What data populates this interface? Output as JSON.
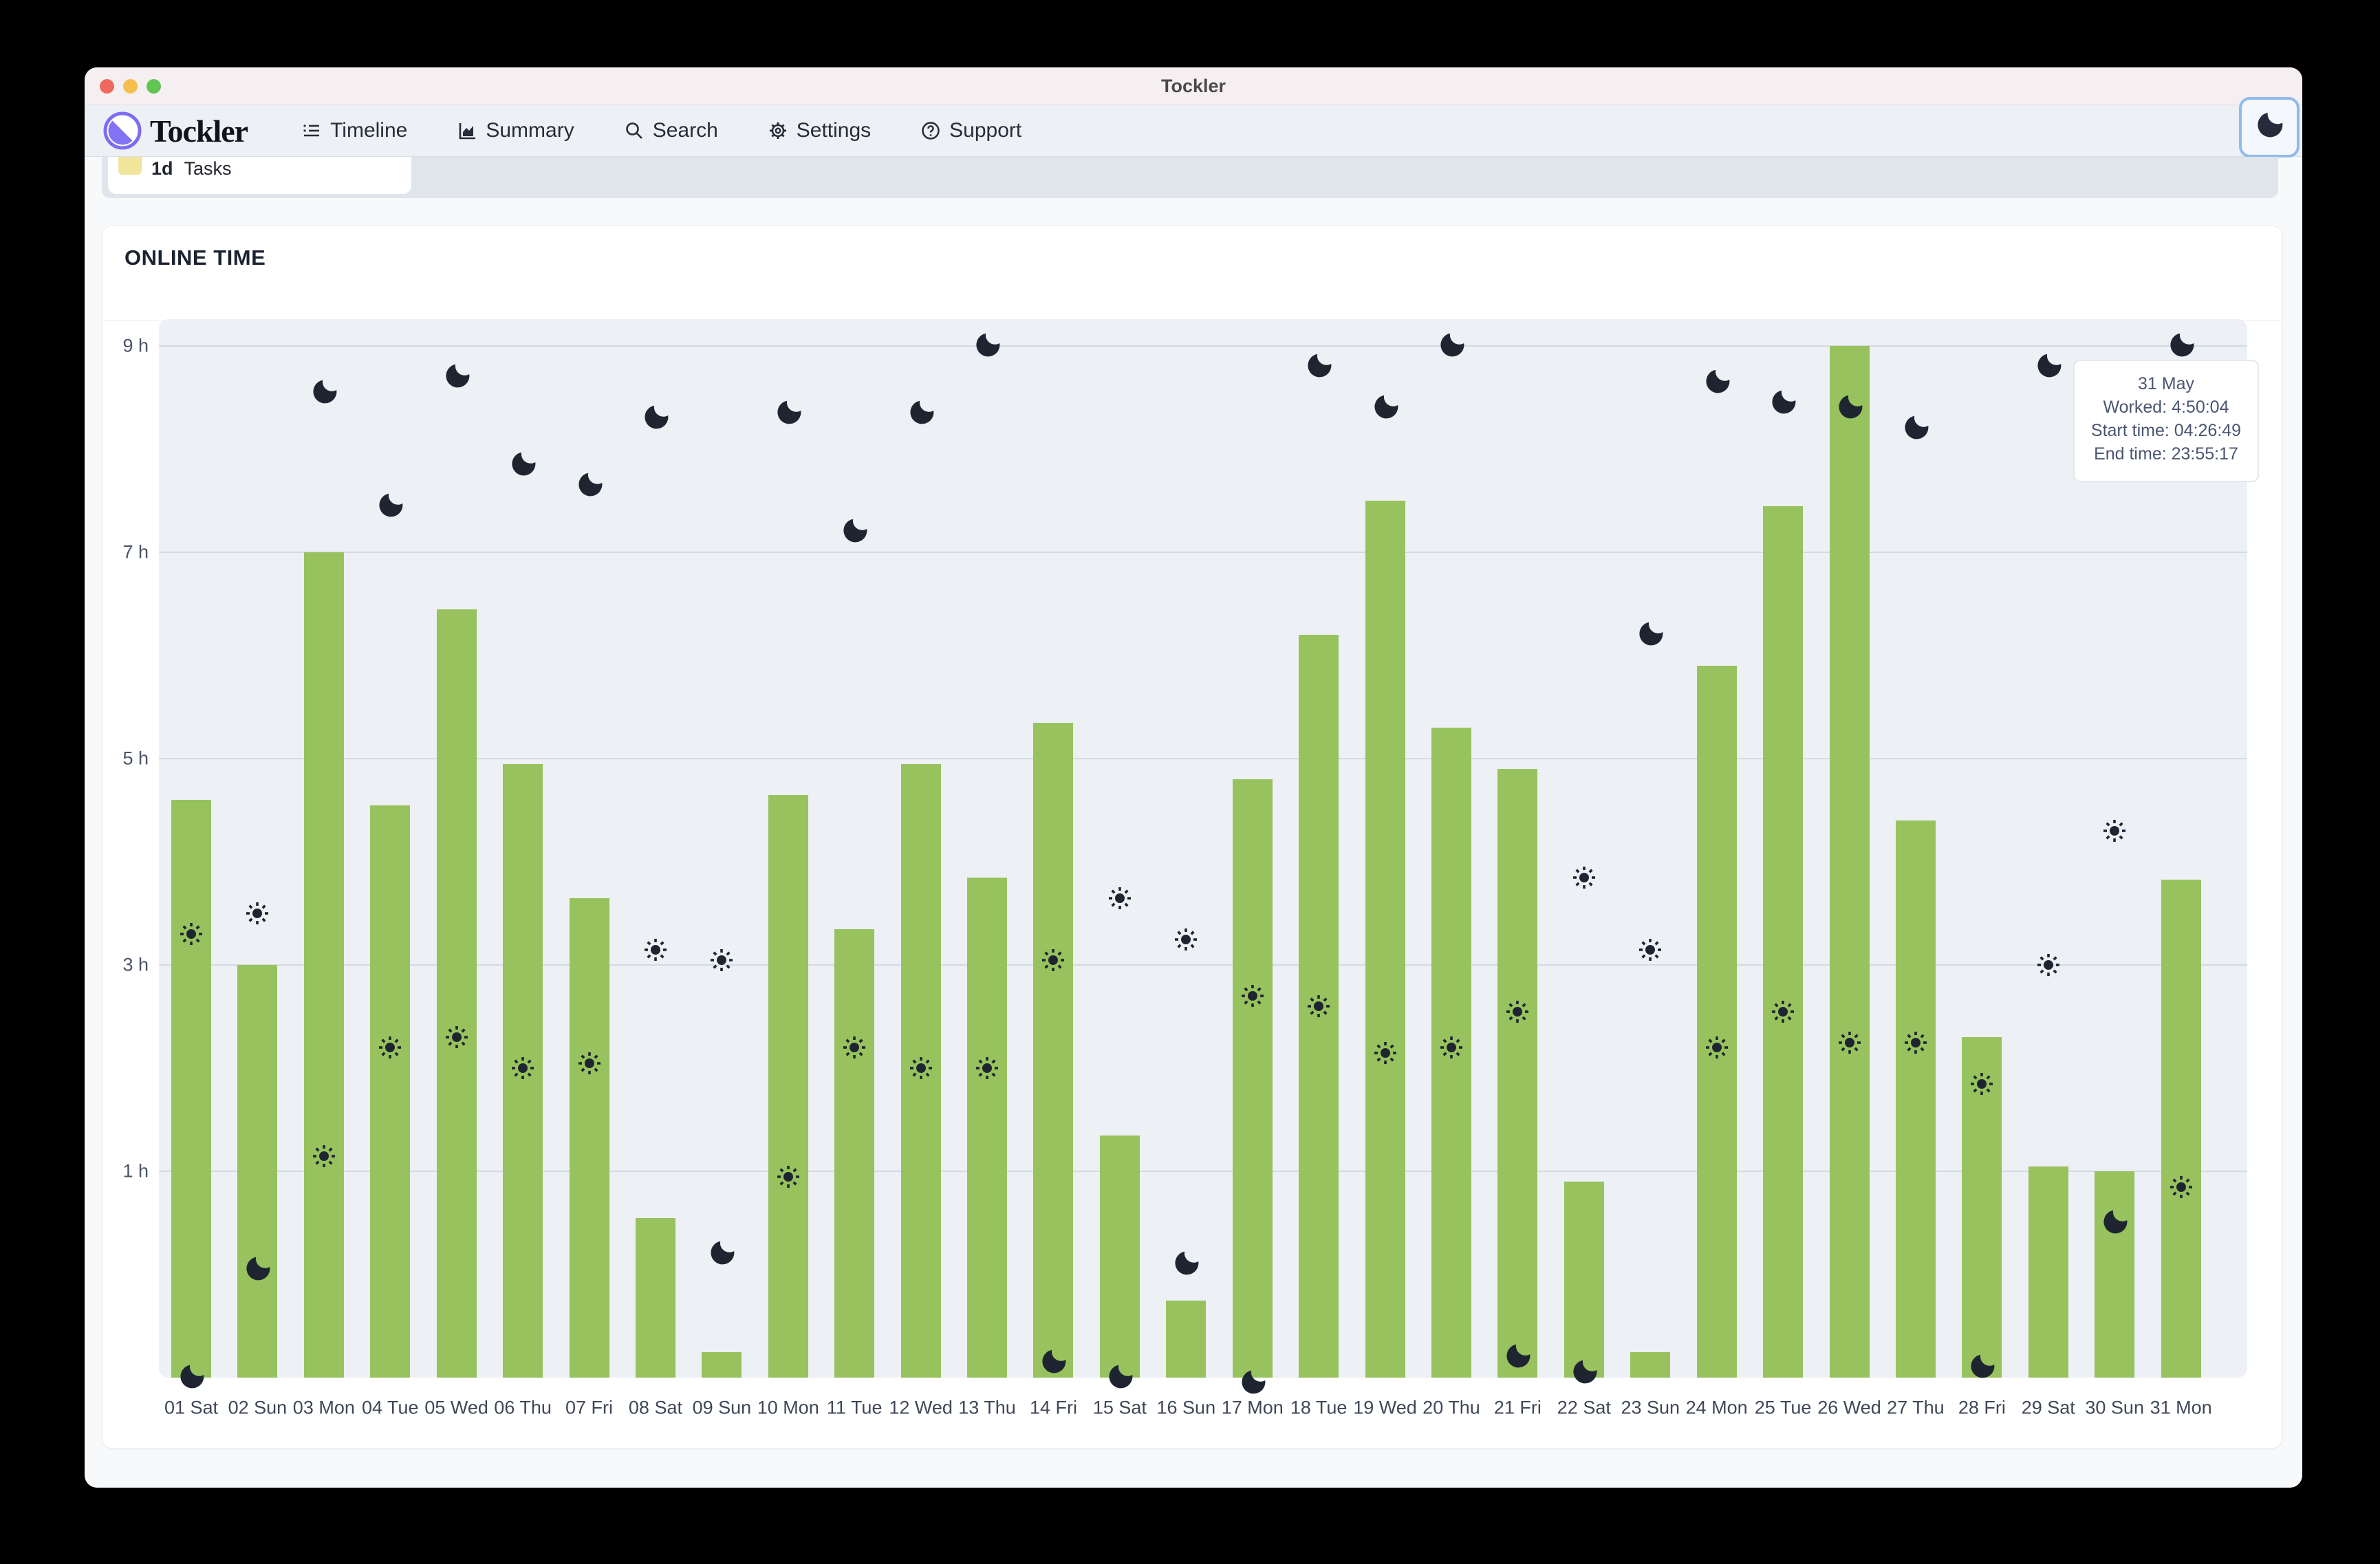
{
  "window": {
    "title": "Tockler"
  },
  "nav": {
    "brand": "Tockler",
    "items": [
      {
        "label": "Timeline",
        "icon": "list-icon"
      },
      {
        "label": "Summary",
        "icon": "area-chart-icon"
      },
      {
        "label": "Search",
        "icon": "search-icon"
      },
      {
        "label": "Settings",
        "icon": "gear-icon"
      },
      {
        "label": "Support",
        "icon": "help-icon"
      }
    ],
    "theme_toggle_icon": "moon-icon"
  },
  "legend": {
    "duration": "1d",
    "label": "Tasks",
    "swatch_color": "#f1e59b"
  },
  "card": {
    "title": "ONLINE TIME"
  },
  "tooltip": {
    "date": "31 May",
    "worked": "Worked: 4:50:04",
    "start": "Start time: 04:26:49",
    "end": "End time: 23:55:17"
  },
  "colors": {
    "bar": "#97c25e",
    "marker": "#1e2531",
    "accent_focus": "#90bbe9",
    "logo_purple": "#7a68f0"
  },
  "chart_data": {
    "type": "bar",
    "title": "ONLINE TIME",
    "unit": "hours",
    "grid": "horizontal",
    "legend_position": "none",
    "axis_min": -1.0,
    "axis_max": 9.27,
    "y_ticks": [
      {
        "value": 9,
        "label": "9 h"
      },
      {
        "value": 7,
        "label": "7 h"
      },
      {
        "value": 5,
        "label": "5 h"
      },
      {
        "value": 3,
        "label": "3 h"
      },
      {
        "value": 1,
        "label": "1 h"
      }
    ],
    "categories": [
      "01 Sat",
      "02 Sun",
      "03 Mon",
      "04 Tue",
      "05 Wed",
      "06 Thu",
      "07 Fri",
      "08 Sat",
      "09 Sun",
      "10 Mon",
      "11 Tue",
      "12 Wed",
      "13 Thu",
      "14 Fri",
      "15 Sat",
      "16 Sun",
      "17 Mon",
      "18 Tue",
      "19 Wed",
      "20 Thu",
      "21 Fri",
      "22 Sat",
      "23 Sun",
      "24 Mon",
      "25 Tue",
      "26 Wed",
      "27 Thu",
      "28 Fri",
      "29 Sat",
      "30 Sun",
      "31 Mon"
    ],
    "series": [
      {
        "name": "worked_hours",
        "type": "bar",
        "values": [
          5.6,
          4.0,
          8.0,
          5.55,
          7.45,
          5.95,
          4.65,
          1.55,
          0.25,
          5.65,
          4.35,
          5.95,
          4.85,
          6.35,
          2.35,
          0.75,
          5.8,
          7.2,
          8.5,
          6.3,
          5.9,
          1.9,
          0.25,
          6.9,
          8.45,
          10.0,
          5.4,
          3.3,
          2.05,
          2.0,
          4.83
        ]
      },
      {
        "name": "start-marker-moon",
        "type": "point",
        "icon": "moon",
        "values": [
          -1.0,
          0.05,
          8.55,
          7.45,
          8.7,
          7.85,
          7.65,
          8.3,
          0.2,
          8.35,
          7.2,
          8.35,
          9.0,
          -0.85,
          -1.0,
          0.1,
          -1.05,
          8.8,
          8.4,
          9.0,
          -0.8,
          -0.95,
          6.2,
          8.65,
          8.45,
          8.4,
          8.2,
          -0.9,
          8.8,
          0.5,
          9.0
        ]
      },
      {
        "name": "end-marker-sun",
        "type": "point",
        "icon": "sun",
        "values": [
          3.3,
          3.5,
          1.15,
          2.2,
          2.3,
          2.0,
          2.05,
          3.15,
          3.05,
          0.95,
          2.2,
          2.0,
          2.0,
          3.05,
          3.65,
          3.25,
          2.7,
          2.6,
          2.15,
          2.2,
          2.55,
          3.85,
          3.15,
          2.2,
          2.55,
          2.25,
          2.25,
          1.85,
          3.0,
          4.3,
          0.85
        ]
      }
    ],
    "note": "bars are drawn from the plot bottom (axis value -1); bar top sits at (worked_hours - 1) on the labeled axis"
  }
}
